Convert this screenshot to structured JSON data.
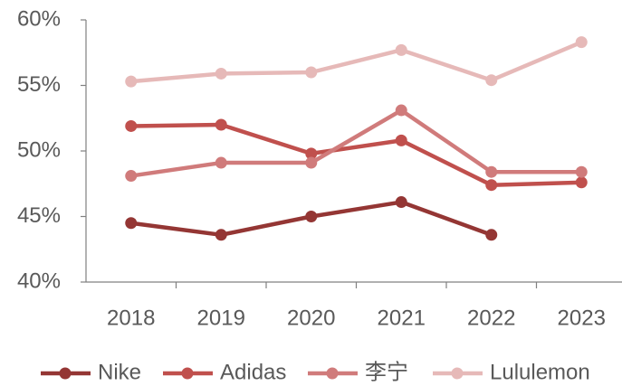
{
  "chart_data": {
    "type": "line",
    "categories": [
      "2018",
      "2019",
      "2020",
      "2021",
      "2022",
      "2023"
    ],
    "series": [
      {
        "name": "Nike",
        "color": "#943634",
        "values": [
          44.5,
          43.6,
          45.0,
          46.1,
          43.6,
          null
        ]
      },
      {
        "name": "Adidas",
        "color": "#c0504d",
        "values": [
          51.9,
          52.0,
          49.8,
          50.8,
          47.4,
          47.6
        ]
      },
      {
        "name": "李宁",
        "color": "#d07b7b",
        "values": [
          48.1,
          49.1,
          49.1,
          53.1,
          48.4,
          48.4
        ]
      },
      {
        "name": "Lululemon",
        "color": "#e6b9b8",
        "values": [
          55.3,
          55.9,
          56.0,
          57.7,
          55.4,
          58.3
        ]
      }
    ],
    "ylim": [
      40,
      60
    ],
    "yticks": [
      {
        "value": 40,
        "label": "40%"
      },
      {
        "value": 45,
        "label": "45%"
      },
      {
        "value": 50,
        "label": "50%"
      },
      {
        "value": 55,
        "label": "55%"
      },
      {
        "value": 60,
        "label": "60%"
      }
    ],
    "legend": "bottom"
  }
}
